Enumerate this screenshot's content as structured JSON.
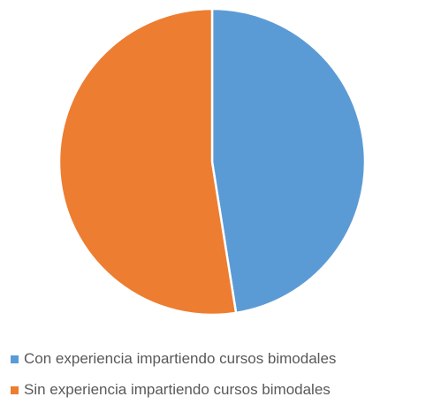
{
  "chart_data": {
    "type": "pie",
    "start_angle_deg": 0,
    "direction": "clockwise",
    "slices": [
      {
        "label": "Con experiencia impartiendo cursos bimodales",
        "value": 47.5,
        "color": "#5B9BD5"
      },
      {
        "label": "Sin experiencia impartiendo cursos bimodales",
        "value": 52.5,
        "color": "#ED7D31"
      }
    ],
    "title": "",
    "legend_position": "bottom-left"
  }
}
